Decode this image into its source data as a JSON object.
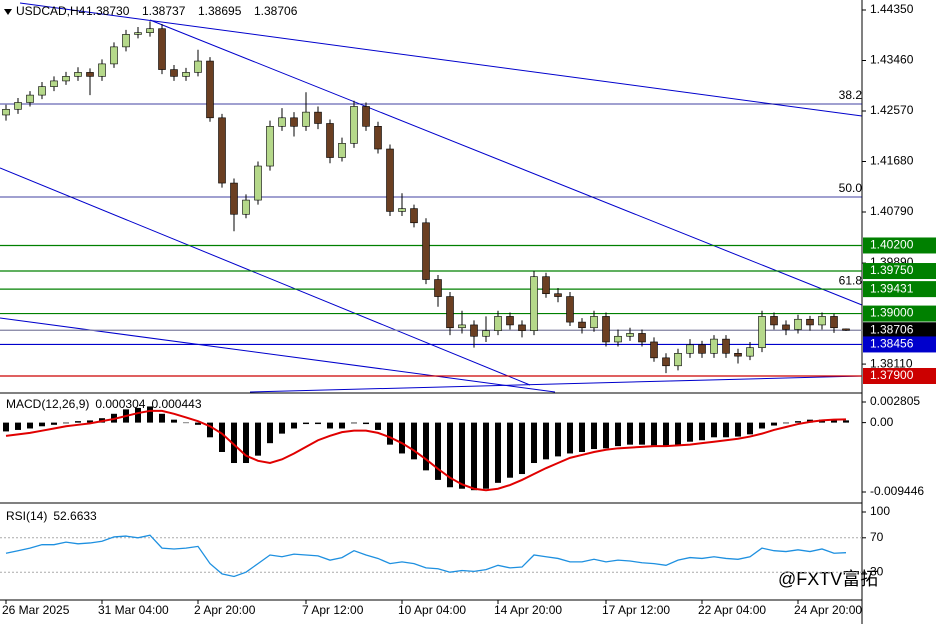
{
  "chart_data": [
    {
      "type": "candlestick",
      "title": "USDCAD,H4",
      "last_labels": [
        "1.38730",
        "1.38737",
        "1.38695",
        "1.38706"
      ],
      "bull_color": "#b5d88a",
      "bear_color": "#6b3f22",
      "categories": [
        "26 Mar 2025",
        null,
        null,
        null,
        null,
        null,
        null,
        null,
        "31 Mar 04:00",
        null,
        null,
        null,
        null,
        null,
        null,
        null,
        "2 Apr 20:00",
        null,
        null,
        null,
        null,
        null,
        null,
        null,
        null,
        "7 Apr 12:00",
        null,
        null,
        null,
        null,
        null,
        null,
        null,
        "10 Apr 04:00",
        null,
        null,
        null,
        null,
        null,
        null,
        null,
        "14 Apr 20:00",
        null,
        null,
        null,
        null,
        null,
        null,
        null,
        null,
        "17 Apr 12:00",
        null,
        null,
        null,
        null,
        null,
        null,
        null,
        "22 Apr 04:00",
        null,
        null,
        null,
        null,
        null,
        null,
        null,
        "24 Apr 20:00",
        null,
        null,
        null,
        null
      ],
      "candles": [
        [
          1.425,
          1.4268,
          1.424,
          1.426
        ],
        [
          1.426,
          1.428,
          1.4252,
          1.4272
        ],
        [
          1.4272,
          1.4292,
          1.4265,
          1.4285
        ],
        [
          1.4285,
          1.4308,
          1.4278,
          1.43
        ],
        [
          1.43,
          1.4318,
          1.4292,
          1.431
        ],
        [
          1.431,
          1.4326,
          1.4303,
          1.4318
        ],
        [
          1.4318,
          1.4334,
          1.431,
          1.4325
        ],
        [
          1.4325,
          1.4332,
          1.4285,
          1.4318
        ],
        [
          1.4318,
          1.4348,
          1.431,
          1.434
        ],
        [
          1.434,
          1.4378,
          1.4333,
          1.437
        ],
        [
          1.437,
          1.44,
          1.4362,
          1.4392
        ],
        [
          1.4392,
          1.4405,
          1.4385,
          1.4395
        ],
        [
          1.4395,
          1.4415,
          1.4388,
          1.4402
        ],
        [
          1.4402,
          1.441,
          1.4322,
          1.433
        ],
        [
          1.433,
          1.4338,
          1.431,
          1.4318
        ],
        [
          1.4318,
          1.4333,
          1.431,
          1.4325
        ],
        [
          1.4325,
          1.4365,
          1.4318,
          1.4345
        ],
        [
          1.4345,
          1.4352,
          1.4238,
          1.4245
        ],
        [
          1.4245,
          1.4252,
          1.4122,
          1.413
        ],
        [
          1.413,
          1.4138,
          1.4045,
          1.4075
        ],
        [
          1.4075,
          1.411,
          1.4068,
          1.41
        ],
        [
          1.41,
          1.4168,
          1.4092,
          1.416
        ],
        [
          1.416,
          1.424,
          1.4152,
          1.423
        ],
        [
          1.423,
          1.4262,
          1.4222,
          1.4245
        ],
        [
          1.4245,
          1.4255,
          1.4212,
          1.423
        ],
        [
          1.423,
          1.429,
          1.4222,
          1.4255
        ],
        [
          1.4255,
          1.4265,
          1.4225,
          1.4235
        ],
        [
          1.4235,
          1.4242,
          1.4165,
          1.4175
        ],
        [
          1.4175,
          1.421,
          1.4168,
          1.42
        ],
        [
          1.42,
          1.4275,
          1.4192,
          1.4265
        ],
        [
          1.4265,
          1.4272,
          1.4222,
          1.423
        ],
        [
          1.423,
          1.4238,
          1.4182,
          1.419
        ],
        [
          1.419,
          1.4198,
          1.4072,
          1.408
        ],
        [
          1.408,
          1.4112,
          1.4072,
          1.4085
        ],
        [
          1.4085,
          1.4092,
          1.4052,
          1.406
        ],
        [
          1.406,
          1.4068,
          1.3952,
          1.396
        ],
        [
          1.396,
          1.3968,
          1.3912,
          1.393
        ],
        [
          1.393,
          1.3938,
          1.3862,
          1.3875
        ],
        [
          1.3875,
          1.3905,
          1.3865,
          1.388
        ],
        [
          1.388,
          1.3888,
          1.384,
          1.386
        ],
        [
          1.386,
          1.3895,
          1.385,
          1.387
        ],
        [
          1.387,
          1.3905,
          1.3862,
          1.3895
        ],
        [
          1.3895,
          1.3902,
          1.3872,
          1.388
        ],
        [
          1.388,
          1.3888,
          1.3858,
          1.387
        ],
        [
          1.387,
          1.3975,
          1.3862,
          1.3965
        ],
        [
          1.3965,
          1.3972,
          1.3928,
          1.3935
        ],
        [
          1.3935,
          1.3945,
          1.392,
          1.393
        ],
        [
          1.393,
          1.3938,
          1.3878,
          1.3885
        ],
        [
          1.3885,
          1.3892,
          1.3865,
          1.3875
        ],
        [
          1.3875,
          1.3905,
          1.3868,
          1.3895
        ],
        [
          1.3895,
          1.3902,
          1.3842,
          1.385
        ],
        [
          1.385,
          1.3872,
          1.3842,
          1.386
        ],
        [
          1.386,
          1.3875,
          1.3852,
          1.3865
        ],
        [
          1.3865,
          1.3872,
          1.3842,
          1.385
        ],
        [
          1.385,
          1.3858,
          1.3815,
          1.3822
        ],
        [
          1.3822,
          1.383,
          1.3795,
          1.3808
        ],
        [
          1.3808,
          1.3838,
          1.38,
          1.383
        ],
        [
          1.383,
          1.3855,
          1.3822,
          1.3845
        ],
        [
          1.3845,
          1.3852,
          1.3822,
          1.383
        ],
        [
          1.383,
          1.3862,
          1.3822,
          1.3855
        ],
        [
          1.3855,
          1.3862,
          1.3822,
          1.383
        ],
        [
          1.383,
          1.3838,
          1.3812,
          1.3825
        ],
        [
          1.3825,
          1.385,
          1.3818,
          1.384
        ],
        [
          1.384,
          1.3905,
          1.3832,
          1.3895
        ],
        [
          1.3895,
          1.3902,
          1.3872,
          1.388
        ],
        [
          1.388,
          1.3888,
          1.3862,
          1.3872
        ],
        [
          1.3872,
          1.3898,
          1.3865,
          1.389
        ],
        [
          1.389,
          1.3896,
          1.387,
          1.388
        ],
        [
          1.388,
          1.3902,
          1.3872,
          1.3895
        ],
        [
          1.3895,
          1.39,
          1.3866,
          1.3875
        ],
        [
          1.3873,
          1.38737,
          1.38695,
          1.38706
        ]
      ],
      "ylim": [
        1.37618,
        1.44526
      ],
      "yticks": [
        {
          "value": 1.4435,
          "label": "1.44350"
        },
        {
          "value": 1.4346,
          "label": "1.43460"
        },
        {
          "value": 1.4257,
          "label": "1.42570"
        },
        {
          "value": 1.4168,
          "label": "1.41680"
        },
        {
          "value": 1.4079,
          "label": "1.40790"
        },
        {
          "value": 1.3989,
          "label": "1.39890"
        },
        {
          "value": 1.3811,
          "label": "1.38110"
        }
      ],
      "fib_levels": [
        {
          "value": 1.42693,
          "label": "38.2"
        },
        {
          "value": 1.41054,
          "label": "50.0"
        },
        {
          "value": 1.39431,
          "label": "61.8"
        }
      ],
      "levels": [
        {
          "value": 1.402,
          "label": "1.40200",
          "color": "#008000"
        },
        {
          "value": 1.3975,
          "label": "1.39750",
          "color": "#008000"
        },
        {
          "value": 1.39431,
          "label": "1.39431",
          "color": "#008000"
        },
        {
          "value": 1.39,
          "label": "1.39000",
          "color": "#008000"
        },
        {
          "value": 1.38706,
          "label": "1.38706",
          "color": "#000000"
        },
        {
          "value": 1.38456,
          "label": "1.38456",
          "color": "#0000cc"
        },
        {
          "value": 1.379,
          "label": "1.37900",
          "color": "#cc0000"
        }
      ]
    },
    {
      "type": "macd",
      "title": "MACD(12,26,9)",
      "series": [
        {
          "color": "#000000",
          "values": [
            -0.0012,
            -0.001,
            -0.0008,
            -0.0005,
            -0.0003,
            -0.0001,
            0.0002,
            0.0003,
            0.0006,
            0.0012,
            0.0018,
            0.002,
            0.0022,
            0.0012,
            0.0004,
            0,
            -0.0003,
            -0.002,
            -0.004,
            -0.0055,
            -0.0055,
            -0.0045,
            -0.0028,
            -0.0015,
            -0.0008,
            -0.0002,
            -0.0002,
            -0.0008,
            -0.0008,
            -0.0001,
            -0.0002,
            -0.001,
            -0.003,
            -0.0042,
            -0.005,
            -0.0065,
            -0.0078,
            -0.0088,
            -0.009,
            -0.0092,
            -0.009,
            -0.0082,
            -0.0075,
            -0.007,
            -0.0055,
            -0.005,
            -0.0046,
            -0.0042,
            -0.004,
            -0.0036,
            -0.0035,
            -0.0032,
            -0.003,
            -0.003,
            -0.0031,
            -0.0032,
            -0.003,
            -0.0026,
            -0.0024,
            -0.002,
            -0.002,
            -0.0019,
            -0.0016,
            -0.0008,
            -0.0004,
            -0.0001,
            0.0002,
            0.0004,
            0.0004,
            0.0004,
            0.000304
          ]
        },
        {
          "color": "#e00000",
          "values": [
            -0.0018,
            -0.0016,
            -0.0014,
            -0.0011,
            -0.0008,
            -0.0005,
            -0.0003,
            -0.0001,
            0.0002,
            0.0005,
            0.0009,
            0.0013,
            0.0016,
            0.0016,
            0.0012,
            0.0007,
            0.0002,
            -0.0005,
            -0.0015,
            -0.003,
            -0.0045,
            -0.0052,
            -0.0055,
            -0.005,
            -0.0042,
            -0.0033,
            -0.0024,
            -0.0018,
            -0.0013,
            -0.0011,
            -0.0011,
            -0.0014,
            -0.002,
            -0.0028,
            -0.0038,
            -0.005,
            -0.0063,
            -0.0075,
            -0.0084,
            -0.009,
            -0.0092,
            -0.009,
            -0.0085,
            -0.0078,
            -0.007,
            -0.0062,
            -0.0055,
            -0.0048,
            -0.0044,
            -0.004,
            -0.0037,
            -0.0035,
            -0.0034,
            -0.0033,
            -0.0032,
            -0.0032,
            -0.0031,
            -0.003,
            -0.0028,
            -0.0026,
            -0.0024,
            -0.0022,
            -0.0019,
            -0.0015,
            -0.001,
            -0.0006,
            -0.0002,
            0.0001,
            0.0003,
            0.0004,
            0.000443
          ]
        }
      ],
      "ylim": [
        -0.009446,
        0.002805
      ],
      "yticks": [
        0.002805,
        {
          "value": 0,
          "label": "0.00"
        },
        -0.009446
      ]
    },
    {
      "type": "line",
      "title": "RSI(14)",
      "color": "#1e90e0",
      "values": [
        52,
        55,
        58,
        62,
        62,
        65,
        63,
        64,
        66,
        71,
        72,
        70,
        73,
        58,
        57,
        58,
        60,
        40,
        28,
        25,
        30,
        40,
        50,
        48,
        51,
        50,
        49,
        44,
        47,
        55,
        50,
        46,
        40,
        42,
        40,
        35,
        34,
        30,
        32,
        31,
        33,
        38,
        35,
        36,
        50,
        48,
        46,
        42,
        42,
        45,
        42,
        44,
        43,
        41,
        40,
        38,
        44,
        47,
        46,
        48,
        46,
        45,
        48,
        58,
        55,
        54,
        56,
        54,
        57,
        52,
        52.6633
      ],
      "ylim": [
        0,
        100
      ],
      "yticks": [
        100,
        70,
        30
      ],
      "guides": [
        70,
        30
      ]
    }
  ],
  "watermark": "@FXTV富拓"
}
